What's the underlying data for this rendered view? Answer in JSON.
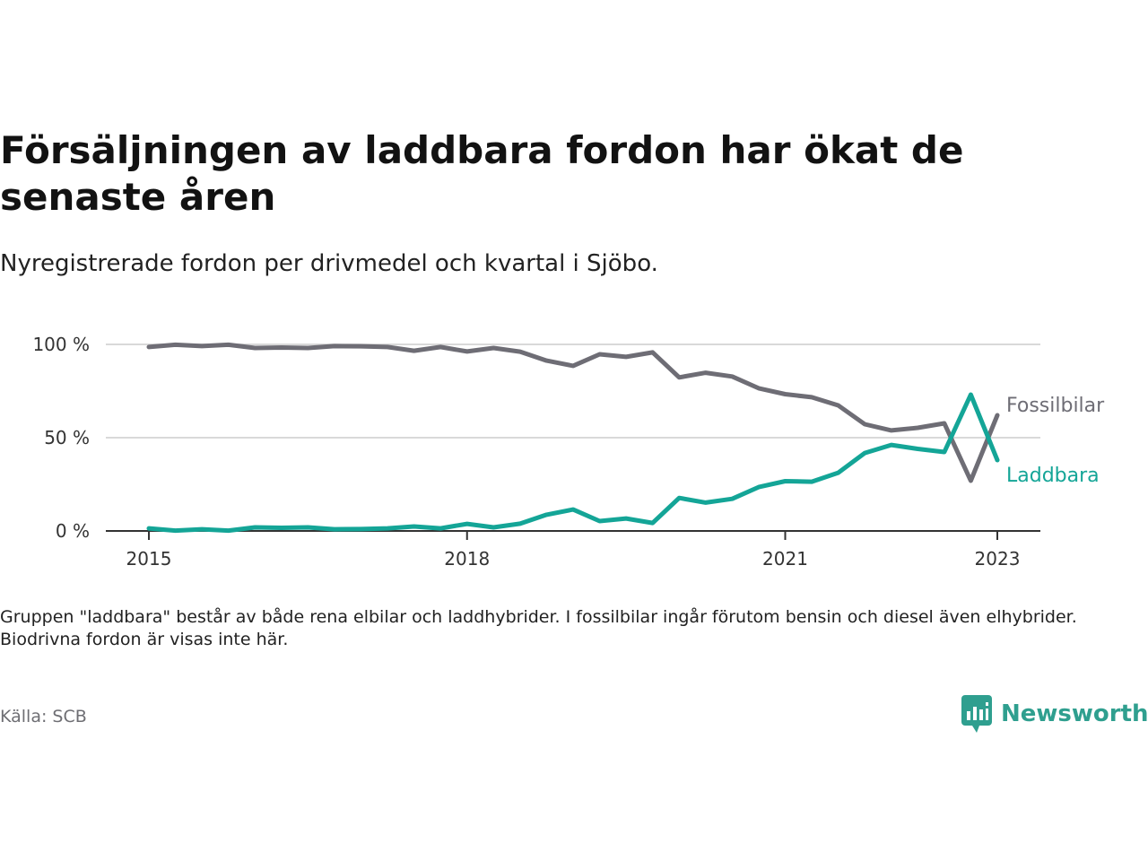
{
  "header": {
    "title": "Försäljningen av laddbara fordon har ökat de senaste åren",
    "subtitle": "Nyregistrerade fordon per drivmedel och kvartal i Sjöbo."
  },
  "footer": {
    "note": "Gruppen \"laddbara\" består av både rena elbilar och laddhybrider. I fossilbilar ingår förutom bensin och diesel även elhybrider. Biodrivna fordon är visas inte här.",
    "source": "Källa: SCB",
    "logo_text": "Newsworthy"
  },
  "colors": {
    "fossil": "#6e6d75",
    "laddbara": "#14a597",
    "grid": "#d9d9d9",
    "axis": "#333333",
    "logo": "#2f9f8f"
  },
  "chart_data": {
    "type": "line",
    "title": "Försäljningen av laddbara fordon har ökat de senaste åren",
    "subtitle": "Nyregistrerade fordon per drivmedel och kvartal i Sjöbo.",
    "x_unit": "quarter",
    "x": [
      "2015-Q1",
      "2015-Q2",
      "2015-Q3",
      "2015-Q4",
      "2016-Q1",
      "2016-Q2",
      "2016-Q3",
      "2016-Q4",
      "2017-Q1",
      "2017-Q2",
      "2017-Q3",
      "2017-Q4",
      "2018-Q1",
      "2018-Q2",
      "2018-Q3",
      "2018-Q4",
      "2019-Q1",
      "2019-Q2",
      "2019-Q3",
      "2019-Q4",
      "2020-Q1",
      "2020-Q2",
      "2020-Q3",
      "2020-Q4",
      "2021-Q1",
      "2021-Q2",
      "2021-Q3",
      "2021-Q4",
      "2022-Q1",
      "2022-Q2",
      "2022-Q3",
      "2022-Q4",
      "2023-Q1"
    ],
    "xticks": [
      {
        "label": "2015",
        "index": 0
      },
      {
        "label": "2018",
        "index": 12
      },
      {
        "label": "2021",
        "index": 24
      },
      {
        "label": "2023",
        "index": 32
      }
    ],
    "ylim": [
      0,
      100
    ],
    "yticks": [
      {
        "value": 0,
        "label": "0 %"
      },
      {
        "value": 50,
        "label": "50 %"
      },
      {
        "value": 100,
        "label": "100 %"
      }
    ],
    "grid": true,
    "legend": "inline-right",
    "series": [
      {
        "name": "Fossilbilar",
        "color": "#6e6d75",
        "values": [
          98.6,
          99.8,
          99.1,
          99.8,
          98.1,
          98.3,
          98.1,
          99.1,
          99.0,
          98.6,
          96.6,
          98.6,
          96.2,
          98.1,
          96.1,
          91.3,
          88.5,
          94.7,
          93.3,
          95.7,
          82.3,
          84.8,
          82.8,
          76.5,
          73.3,
          71.7,
          67.3,
          57.2,
          53.9,
          55.3,
          57.7,
          26.9,
          62.0
        ]
      },
      {
        "name": "Laddbara",
        "color": "#14a597",
        "values": [
          1.4,
          0.2,
          0.9,
          0.2,
          1.9,
          1.7,
          1.9,
          0.9,
          1.0,
          1.4,
          2.4,
          1.4,
          3.8,
          1.9,
          3.9,
          8.7,
          11.5,
          5.3,
          6.7,
          4.3,
          17.7,
          15.2,
          17.2,
          23.5,
          26.7,
          26.4,
          31.2,
          41.8,
          46.1,
          44.0,
          42.3,
          73.1,
          38.0
        ]
      }
    ]
  }
}
